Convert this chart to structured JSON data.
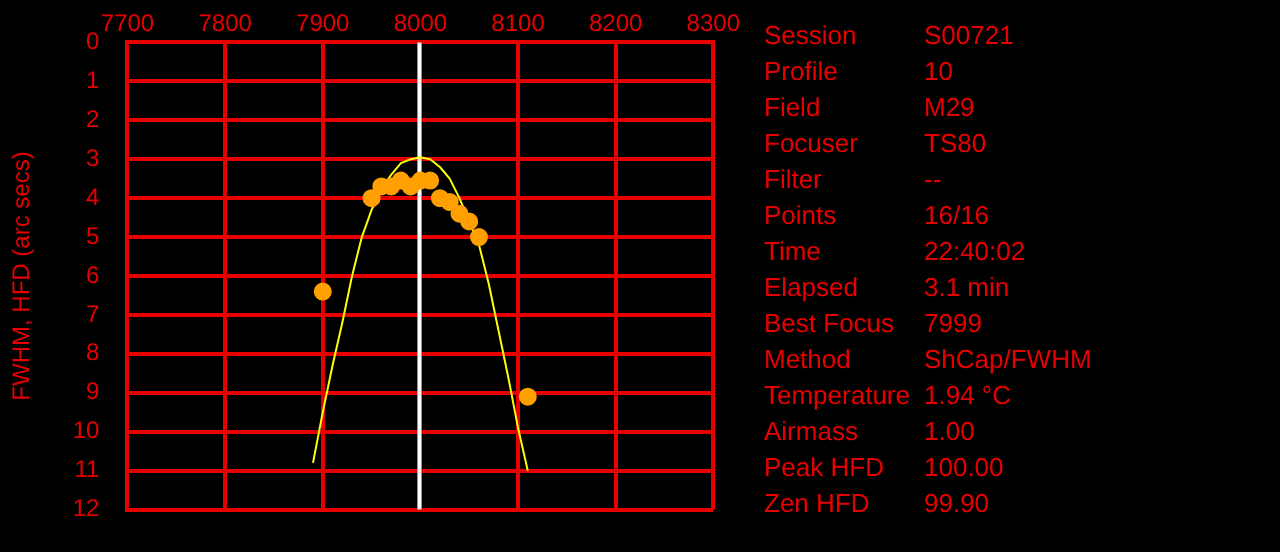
{
  "chart_data": [
    {
      "type": "scatter",
      "ylabel": "FWHM, HFD (arc secs)",
      "xlim": [
        7700,
        8300
      ],
      "xticks": [
        7700,
        7800,
        7900,
        8000,
        8100,
        8200,
        8300
      ],
      "ylim": [
        12,
        0
      ],
      "yticks": [
        0,
        1,
        2,
        3,
        4,
        5,
        6,
        7,
        8,
        9,
        10,
        11,
        12
      ],
      "grid": true,
      "legend": false,
      "marker": "circle",
      "series": [
        {
          "type": "scatter",
          "color": "#ffa000",
          "x": [
            7900,
            7950,
            7960,
            7970,
            7980,
            7990,
            8000,
            8010,
            8020,
            8030,
            8040,
            8050,
            8060,
            8110
          ],
          "values": [
            6.4,
            4.0,
            3.7,
            3.7,
            3.55,
            3.7,
            3.55,
            3.55,
            4.0,
            4.1,
            4.4,
            4.6,
            5.0,
            9.1
          ]
        },
        {
          "type": "line",
          "color": "#ffff00",
          "marker": "none",
          "x": [
            7890,
            7900,
            7910,
            7920,
            7930,
            7940,
            7950,
            7960,
            7970,
            7980,
            7990,
            8000,
            8010,
            8020,
            8030,
            8040,
            8050,
            8060,
            8070,
            8080,
            8090,
            8100,
            8110
          ],
          "values": [
            10.8,
            9.5,
            8.3,
            7.2,
            6.0,
            5.0,
            4.3,
            3.8,
            3.4,
            3.1,
            3.0,
            2.95,
            3.0,
            3.2,
            3.5,
            4.0,
            4.6,
            5.2,
            6.2,
            7.4,
            8.6,
            9.9,
            11.0
          ]
        }
      ],
      "ref_lines": [
        {
          "axis": "x",
          "value": 7999,
          "color": "#ffffff"
        }
      ]
    },
    {
      "type": "other",
      "annotations": [
        "Session",
        "S00721",
        "Profile",
        "10",
        "Field",
        "M29",
        "Focuser",
        "TS80",
        "Filter",
        "--",
        "Points",
        "16/16",
        "Time",
        "22:40:02",
        "Elapsed",
        "3.1 min",
        "Best Focus",
        "7999",
        "Method",
        "ShCap/FWHM",
        "Temperature",
        "1.94 °C",
        "Airmass",
        "1.00",
        "Peak HFD",
        "100.00",
        "Zen HFD",
        "99.90"
      ]
    }
  ]
}
